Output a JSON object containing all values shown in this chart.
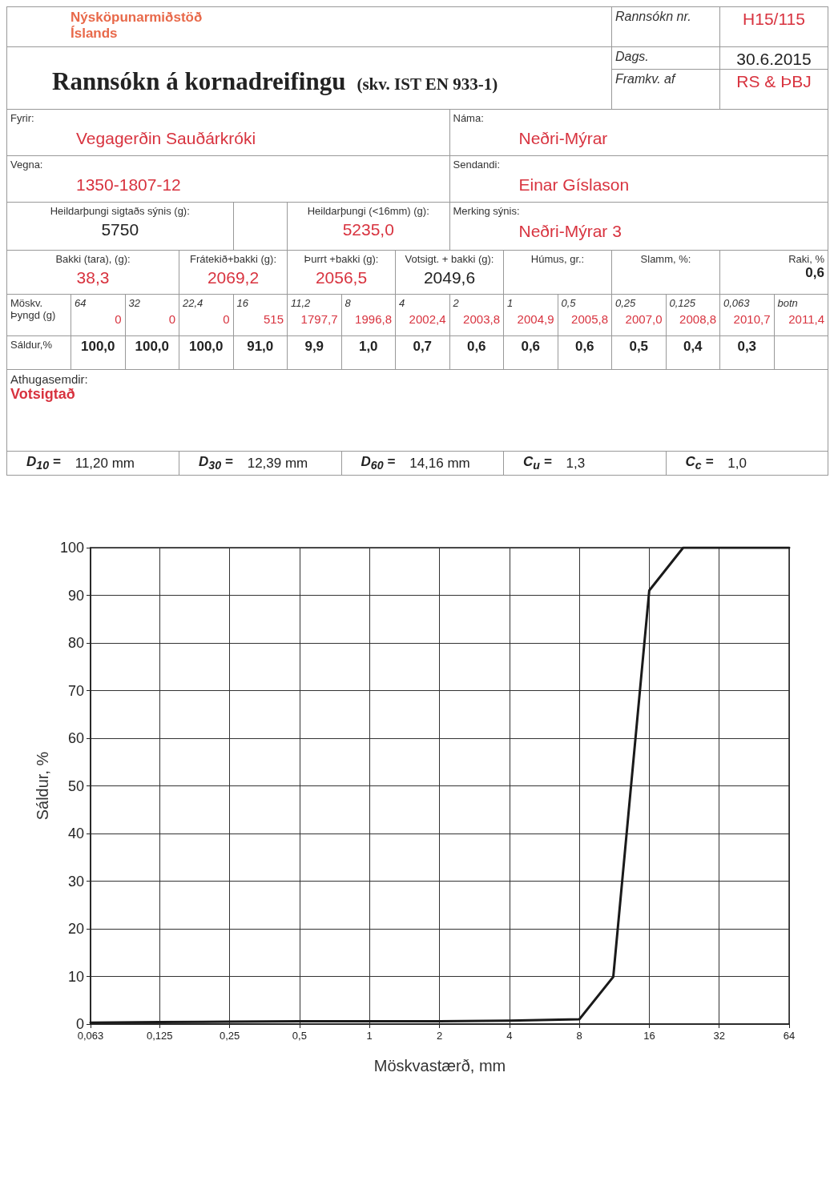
{
  "chart_data": {
    "type": "line",
    "title": "Rannsókn á kornadreifingu",
    "subtitle": "(skv. IST EN 933-1)",
    "xlabel": "Möskvastærð, mm",
    "ylabel": "Sáldur, %",
    "x": [
      0.063,
      0.125,
      0.25,
      0.5,
      1,
      2,
      4,
      8,
      11.2,
      16,
      22.4,
      32,
      64
    ],
    "series": [
      {
        "color": "#1a1a1a",
        "values": [
          0.3,
          0.4,
          0.5,
          0.6,
          0.6,
          0.6,
          0.7,
          1.0,
          9.9,
          91.0,
          100,
          100,
          100
        ]
      }
    ],
    "log": "x",
    "xlim": [
      0.063,
      64
    ],
    "xticks": [
      {
        "value": 0.063,
        "label": "0,063"
      },
      {
        "value": 0.125,
        "label": "0,125"
      },
      {
        "value": 0.25,
        "label": "0,25"
      },
      {
        "value": 0.5,
        "label": "0,5"
      },
      1,
      2,
      4,
      8,
      16,
      32,
      64
    ],
    "ylim": [
      0,
      100
    ],
    "yticks": [
      0,
      10,
      20,
      30,
      40,
      50,
      60,
      70,
      80,
      90,
      100
    ],
    "grid": true,
    "marker": "none",
    "line_style": "solid",
    "annotations": [
      "Nýsköpunarmiðstöð",
      "Íslands",
      "Rannsókn nr.",
      "H15/115",
      "Dags.",
      "30.6.2015",
      "Framkv. af",
      "RS & ÞBJ",
      "Fyrir:",
      "Vegagerðin Sauðárkróki",
      "Náma:",
      "Neðri-Mýrar",
      "Vegna:",
      "1350-1807-12",
      "Sendandi:",
      "Einar Gíslason",
      "Heildarþungi sigtaðs sýnis (g):",
      "5750",
      "Heildarþungi (<16mm) (g):",
      "5235,0",
      "Merking sýnis:",
      "Neðri-Mýrar 3",
      "Bakki (tara), (g):",
      "38,3",
      "Frátekið+bakki (g):",
      "2069,2",
      "Þurrt +bakki (g):",
      "2056,5",
      "Votsigt. + bakki (g):",
      "2049,6",
      "Húmus, gr.:",
      "Slamm, %:",
      "Raki, %",
      "0,6",
      "Möskv.",
      "Þyngd (g)",
      "64",
      "32",
      "22,4",
      "16",
      "11,2",
      "8",
      "4",
      "2",
      "1",
      "0,5",
      "0,25",
      "0,125",
      "0,063",
      "botn",
      "0",
      "0",
      "0",
      "515",
      "1797,7",
      "1996,8",
      "2002,4",
      "2003,8",
      "2004,9",
      "2005,8",
      "2007,0",
      "2008,8",
      "2010,7",
      "2011,4",
      "Sáldur,%",
      "100,0",
      "100,0",
      "100,0",
      "91,0",
      "9,9",
      "1,0",
      "0,7",
      "0,6",
      "0,6",
      "0,6",
      "0,5",
      "0,4",
      "0,3",
      "Athugasemdir:",
      "Votsigtað",
      "D$_{10}$ =",
      "11,20 mm",
      "D$_{30}$ =",
      "12,39 mm",
      "D$_{60}$ =",
      "14,16 mm",
      "C$_{u}$ =",
      "1,3",
      "C$_{c}$ =",
      "1,0"
    ]
  }
}
